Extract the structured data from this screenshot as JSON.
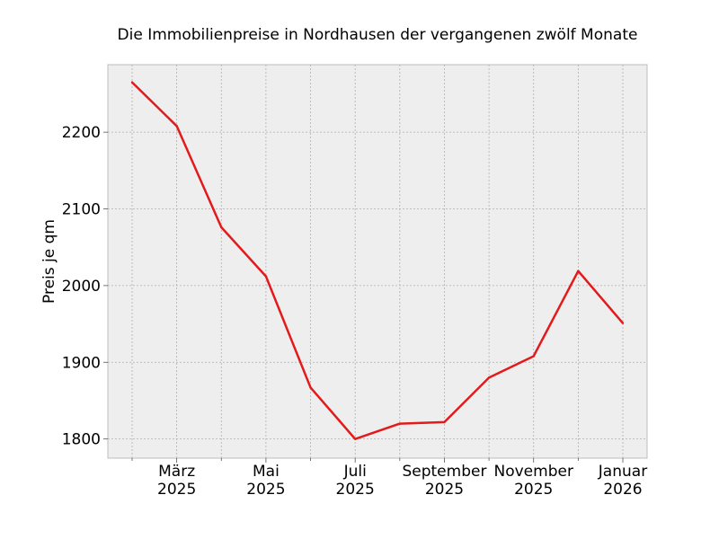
{
  "chart_data": {
    "type": "line",
    "title": "Die Immobilienpreise in Nordhausen der vergangenen zwölf Monate",
    "xlabel": "",
    "ylabel": "Preis je qm",
    "x": [
      "2025-02",
      "2025-03",
      "2025-04",
      "2025-05",
      "2025-06",
      "2025-07",
      "2025-08",
      "2025-09",
      "2025-10",
      "2025-11",
      "2025-12",
      "2026-01"
    ],
    "series": [
      {
        "values": [
          2265,
          2208,
          2076,
          2012,
          1867,
          1800,
          1820,
          1822,
          1880,
          1908,
          2019,
          1951
        ],
        "color": "#e31a1c"
      }
    ],
    "ylim": [
      1775,
      2288
    ],
    "yticks": [
      1800,
      1900,
      2000,
      2100,
      2200
    ],
    "xtick_labels": [
      {
        "month": "2025-03",
        "line1": "März",
        "line2": "2025"
      },
      {
        "month": "2025-05",
        "line1": "Mai",
        "line2": "2025"
      },
      {
        "month": "2025-07",
        "line1": "Juli",
        "line2": "2025"
      },
      {
        "month": "2025-09",
        "line1": "September",
        "line2": "2025"
      },
      {
        "month": "2025-11",
        "line1": "November",
        "line2": "2025"
      },
      {
        "month": "2026-01",
        "line1": "Januar",
        "line2": "2026"
      }
    ],
    "grid": true,
    "background": "#eeeeee"
  }
}
